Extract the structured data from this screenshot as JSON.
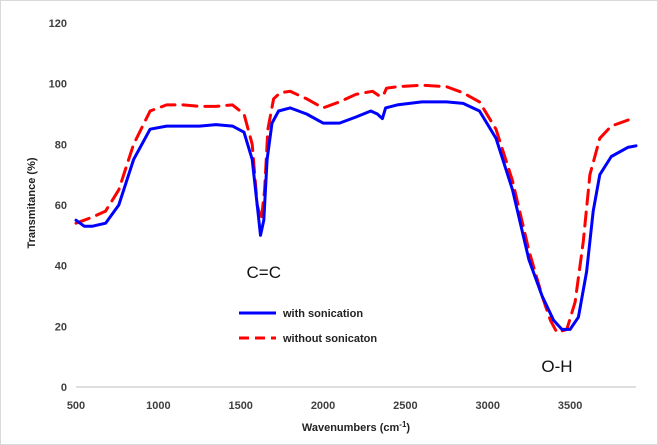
{
  "chart_data": {
    "type": "line",
    "xlabel": "Wavenumbers (cm",
    "xlabel_sup": "-1",
    "xlabel_end": ")",
    "ylabel": "Transmitance (%)",
    "xlim": [
      500,
      3900
    ],
    "ylim": [
      0,
      120
    ],
    "xticks": [
      500,
      1000,
      1500,
      2000,
      2500,
      3000,
      3500
    ],
    "yticks": [
      0,
      20,
      40,
      60,
      80,
      100,
      120
    ],
    "grid": false,
    "legend_position": "center-left",
    "annotations": [
      {
        "text": "C=C",
        "x": 1640,
        "y": 36
      },
      {
        "text": "O-H",
        "x": 3420,
        "y": 5
      }
    ],
    "series": [
      {
        "name": "with sonication",
        "color": "#0000ff",
        "dash": "solid",
        "x": [
          500,
          550,
          600,
          680,
          760,
          850,
          950,
          1050,
          1150,
          1250,
          1350,
          1450,
          1520,
          1570,
          1600,
          1620,
          1640,
          1660,
          1690,
          1730,
          1800,
          1900,
          2000,
          2100,
          2200,
          2290,
          2330,
          2360,
          2380,
          2450,
          2600,
          2750,
          2850,
          2950,
          3050,
          3150,
          3250,
          3330,
          3400,
          3450,
          3500,
          3550,
          3600,
          3640,
          3680,
          3750,
          3850,
          3900
        ],
        "y": [
          55,
          53,
          53,
          54,
          60,
          75,
          85,
          86,
          86,
          86,
          86.5,
          86,
          84,
          75,
          60,
          50,
          55,
          75,
          87,
          91,
          92,
          90,
          87,
          87,
          89,
          91,
          90,
          88.5,
          92,
          93,
          94,
          94,
          93.5,
          91,
          82,
          65,
          42,
          30,
          22,
          19,
          19,
          23,
          38,
          58,
          70,
          76,
          79,
          79.5
        ]
      },
      {
        "name": "without sonicaton",
        "color": "#ff0000",
        "dash": "dashed",
        "x": [
          500,
          550,
          600,
          680,
          760,
          850,
          950,
          1050,
          1150,
          1250,
          1350,
          1450,
          1520,
          1570,
          1600,
          1625,
          1645,
          1665,
          1700,
          1740,
          1800,
          1900,
          2000,
          2100,
          2200,
          2300,
          2340,
          2365,
          2385,
          2450,
          2600,
          2750,
          2850,
          2950,
          3050,
          3150,
          3250,
          3330,
          3380,
          3420,
          3480,
          3530,
          3580,
          3620,
          3680,
          3750,
          3850,
          3900
        ],
        "y": [
          54,
          55,
          56,
          58,
          65,
          80,
          91,
          93,
          93,
          92.5,
          92.5,
          93,
          90,
          80,
          60,
          55,
          65,
          85,
          95,
          97,
          97.5,
          95,
          92,
          94,
          96.5,
          97.5,
          96,
          96,
          98.5,
          99,
          99.5,
          99,
          97,
          94,
          85,
          68,
          45,
          30,
          22,
          18,
          19,
          28,
          48,
          70,
          82,
          86,
          88,
          88.5
        ]
      }
    ]
  }
}
